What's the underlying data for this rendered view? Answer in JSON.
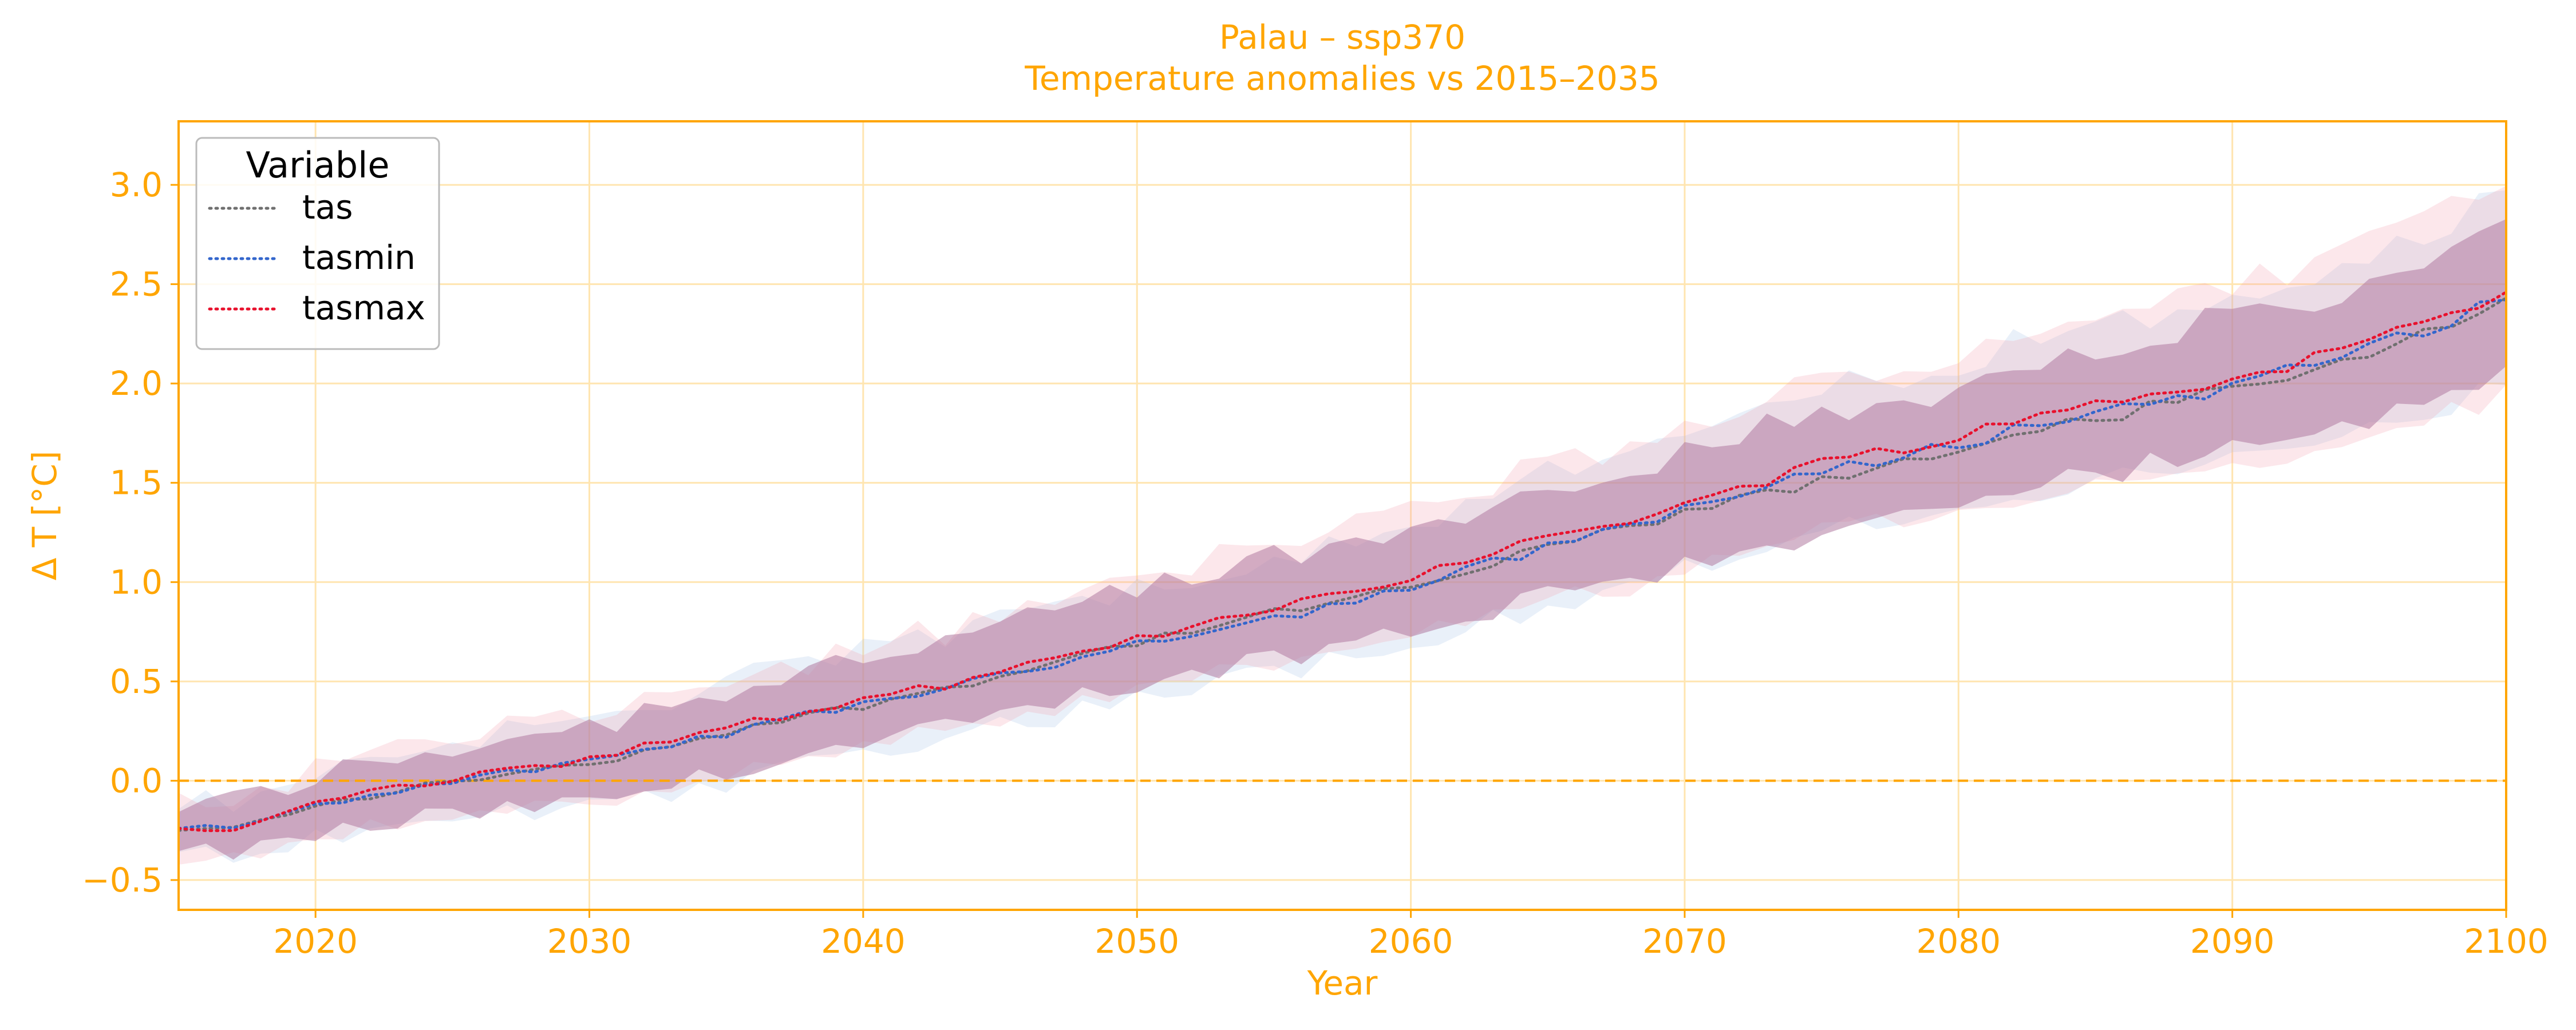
{
  "chart_data": {
    "type": "line",
    "title_line1": "Palau – ssp370",
    "title_line2": "Temperature anomalies vs 2015–2035",
    "xlabel": "Year",
    "ylabel": "Δ T [°C]",
    "xlim": [
      2015,
      2100
    ],
    "ylim": [
      -0.65,
      3.32
    ],
    "xticks": [
      2020,
      2030,
      2040,
      2050,
      2060,
      2070,
      2080,
      2090,
      2100
    ],
    "yticks": [
      -0.5,
      0.0,
      0.5,
      1.0,
      1.5,
      2.0,
      2.5,
      3.0
    ],
    "ytick_labels": [
      "−0.5",
      "0.0",
      "0.5",
      "1.0",
      "1.5",
      "2.0",
      "2.5",
      "3.0"
    ],
    "grid": true,
    "reference_line": 0.0,
    "legend": {
      "title": "Variable",
      "position": "top-left"
    },
    "colors": {
      "accent": "#FFA500",
      "grid": "#FFE5B0"
    },
    "x_anchor_years": [
      2015,
      2017,
      2020,
      2025,
      2030,
      2035,
      2040,
      2045,
      2050,
      2055,
      2060,
      2065,
      2070,
      2075,
      2080,
      2085,
      2090,
      2095,
      2100
    ],
    "series": [
      {
        "name": "tas",
        "color": "#707070",
        "band_color": "#B07AA1",
        "band_opacity": 0.55,
        "anchors": [
          -0.25,
          -0.24,
          -0.13,
          0.0,
          0.08,
          0.25,
          0.38,
          0.53,
          0.7,
          0.84,
          0.97,
          1.17,
          1.35,
          1.5,
          1.68,
          1.82,
          1.97,
          2.12,
          2.43
        ],
        "lower_offsets": [
          -0.12,
          -0.13,
          -0.15,
          -0.17,
          -0.2,
          -0.2,
          -0.2,
          -0.2,
          -0.21,
          -0.22,
          -0.22,
          -0.24,
          -0.26,
          -0.27,
          -0.28,
          -0.3,
          -0.32,
          -0.34,
          -0.37
        ],
        "upper_offsets": [
          0.12,
          0.13,
          0.15,
          0.17,
          0.2,
          0.22,
          0.24,
          0.25,
          0.25,
          0.27,
          0.28,
          0.3,
          0.31,
          0.32,
          0.33,
          0.34,
          0.35,
          0.35,
          0.37
        ]
      },
      {
        "name": "tasmin",
        "color": "#3366CC",
        "band_color": "#A9C4E8",
        "band_opacity": 0.25,
        "anchors": [
          -0.24,
          -0.23,
          -0.12,
          0.0,
          0.09,
          0.24,
          0.39,
          0.52,
          0.7,
          0.82,
          0.97,
          1.18,
          1.37,
          1.55,
          1.7,
          1.86,
          1.98,
          2.18,
          2.42
        ],
        "lower_offsets": [
          -0.14,
          -0.14,
          -0.17,
          -0.2,
          -0.22,
          -0.24,
          -0.24,
          -0.25,
          -0.26,
          -0.27,
          -0.28,
          -0.3,
          -0.31,
          -0.32,
          -0.34,
          -0.36,
          -0.38,
          -0.4,
          -0.42
        ],
        "upper_offsets": [
          0.14,
          0.14,
          0.17,
          0.2,
          0.22,
          0.24,
          0.26,
          0.28,
          0.29,
          0.31,
          0.33,
          0.35,
          0.37,
          0.39,
          0.41,
          0.43,
          0.45,
          0.47,
          0.5
        ]
      },
      {
        "name": "tasmax",
        "color": "#E8112D",
        "band_color": "#F2A0AE",
        "band_opacity": 0.25,
        "anchors": [
          -0.24,
          -0.26,
          -0.1,
          0.01,
          0.11,
          0.27,
          0.4,
          0.54,
          0.71,
          0.88,
          1.03,
          1.22,
          1.39,
          1.6,
          1.74,
          1.9,
          2.02,
          2.2,
          2.46
        ],
        "lower_offsets": [
          -0.14,
          -0.15,
          -0.17,
          -0.2,
          -0.22,
          -0.24,
          -0.25,
          -0.26,
          -0.27,
          -0.28,
          -0.3,
          -0.32,
          -0.34,
          -0.36,
          -0.38,
          -0.4,
          -0.43,
          -0.46,
          -0.5
        ],
        "upper_offsets": [
          0.14,
          0.15,
          0.17,
          0.2,
          0.22,
          0.24,
          0.26,
          0.28,
          0.3,
          0.32,
          0.34,
          0.36,
          0.38,
          0.4,
          0.42,
          0.45,
          0.48,
          0.52,
          0.58
        ]
      }
    ]
  }
}
